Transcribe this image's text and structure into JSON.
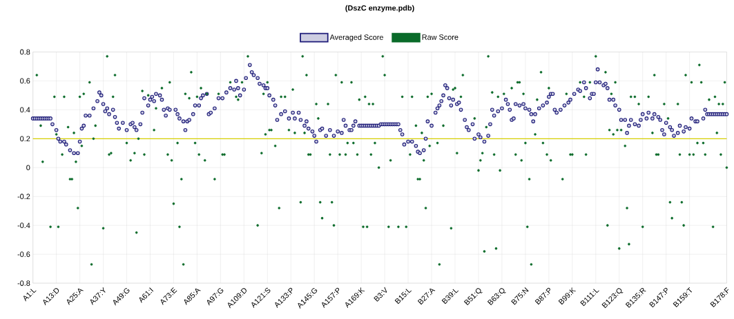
{
  "chart_data": {
    "type": "scatter",
    "title": "(DszC enzyme.pdb)",
    "categories": [
      "A1:L",
      null,
      null,
      null,
      null,
      null,
      null,
      null,
      null,
      null,
      null,
      null,
      "A13:D",
      null,
      null,
      null,
      null,
      null,
      null,
      null,
      null,
      null,
      null,
      null,
      "A25:A",
      null,
      null,
      null,
      null,
      null,
      null,
      null,
      null,
      null,
      null,
      null,
      "A37:Y",
      null,
      null,
      null,
      null,
      null,
      null,
      null,
      null,
      null,
      null,
      null,
      "A49:G",
      null,
      null,
      null,
      null,
      null,
      null,
      null,
      null,
      null,
      null,
      null,
      "A61:I",
      null,
      null,
      null,
      null,
      null,
      null,
      null,
      null,
      null,
      null,
      null,
      "A73:E",
      null,
      null,
      null,
      null,
      null,
      null,
      null,
      null,
      null,
      null,
      null,
      "A85:A",
      null,
      null,
      null,
      null,
      null,
      null,
      null,
      null,
      null,
      null,
      null,
      "A97:G",
      null,
      null,
      null,
      null,
      null,
      null,
      null,
      null,
      null,
      null,
      null,
      "A109:D",
      null,
      null,
      null,
      null,
      null,
      null,
      null,
      null,
      null,
      null,
      null,
      "A121:S",
      null,
      null,
      null,
      null,
      null,
      null,
      null,
      null,
      null,
      null,
      null,
      "A133:P",
      null,
      null,
      null,
      null,
      null,
      null,
      null,
      null,
      null,
      null,
      null,
      "A145:G",
      null,
      null,
      null,
      null,
      null,
      null,
      null,
      null,
      null,
      null,
      null,
      "A157:P",
      null,
      null,
      null,
      null,
      null,
      null,
      null,
      null,
      null,
      null,
      null,
      "A169:K",
      null,
      null,
      null,
      null,
      null,
      null,
      null,
      null,
      null,
      null,
      null,
      "B3:V",
      null,
      null,
      null,
      null,
      null,
      null,
      null,
      null,
      null,
      null,
      null,
      "B15:L",
      null,
      null,
      null,
      null,
      null,
      null,
      null,
      null,
      null,
      null,
      null,
      "B27:A",
      null,
      null,
      null,
      null,
      null,
      null,
      null,
      null,
      null,
      null,
      null,
      "B39:L",
      null,
      null,
      null,
      null,
      null,
      null,
      null,
      null,
      null,
      null,
      null,
      "B51:Q",
      null,
      null,
      null,
      null,
      null,
      null,
      null,
      null,
      null,
      null,
      null,
      "B63:Q",
      null,
      null,
      null,
      null,
      null,
      null,
      null,
      null,
      null,
      null,
      null,
      "B75:N",
      null,
      null,
      null,
      null,
      null,
      null,
      null,
      null,
      null,
      null,
      null,
      "B87:P",
      null,
      null,
      null,
      null,
      null,
      null,
      null,
      null,
      null,
      null,
      null,
      "B99:K",
      null,
      null,
      null,
      null,
      null,
      null,
      null,
      null,
      null,
      null,
      null,
      "B111:L",
      null,
      null,
      null,
      null,
      null,
      null,
      null,
      null,
      null,
      null,
      null,
      "B123:Q",
      null,
      null,
      null,
      null,
      null,
      null,
      null,
      null,
      null,
      null,
      null,
      "B135:R",
      null,
      null,
      null,
      null,
      null,
      null,
      null,
      null,
      null,
      null,
      null,
      "B147:P",
      null,
      null,
      null,
      null,
      null,
      null,
      null,
      null,
      null,
      null,
      null,
      "B159:T",
      null,
      null,
      null,
      null,
      null,
      null,
      null,
      null,
      null,
      null,
      null,
      null,
      null,
      null,
      null,
      null,
      null,
      null,
      "B178:F"
    ],
    "ylim": [
      -0.8,
      0.8
    ],
    "yticks": [
      -0.8,
      -0.6,
      -0.4,
      -0.2,
      0,
      0.2,
      0.4,
      0.6,
      0.8
    ],
    "grid": true,
    "legend": "top",
    "marker": "circle",
    "ref_lines": [
      {
        "axis": "y",
        "value": 0.2,
        "color": "#d6d000"
      }
    ],
    "series": [
      {
        "name": "Averaged Score",
        "color": "#1c1a78",
        "values": [
          0.34,
          0.34,
          0.34,
          0.34,
          0.34,
          0.34,
          0.34,
          0.34,
          0.34,
          0.34,
          0.3,
          null,
          0.26,
          0.2,
          0.18,
          null,
          0.18,
          0.16,
          null,
          0.12,
          null,
          0.1,
          null,
          0.1,
          0.18,
          0.27,
          0.29,
          0.36,
          null,
          0.36,
          null,
          0.41,
          null,
          0.46,
          0.52,
          0.5,
          0.44,
          0.39,
          0.41,
          0.37,
          null,
          0.4,
          0.35,
          0.31,
          0.27,
          null,
          0.31,
          null,
          0.26,
          null,
          0.3,
          0.31,
          0.28,
          0.26,
          null,
          0.3,
          0.38,
          0.48,
          null,
          0.43,
          0.47,
          0.49,
          0.46,
          0.51,
          null,
          0.5,
          0.47,
          0.4,
          0.36,
          0.41,
          0.4,
          null,
          null,
          0.4,
          0.37,
          0.34,
          null,
          0.32,
          0.26,
          0.32,
          0.33,
          null,
          0.37,
          0.43,
          null,
          0.43,
          0.48,
          0.5,
          null,
          0.51,
          0.37,
          0.38,
          null,
          0.41,
          null,
          0.48,
          null,
          0.48,
          null,
          0.52,
          null,
          0.55,
          null,
          0.54,
          0.6,
          0.55,
          0.5,
          null,
          0.54,
          0.62,
          null,
          0.71,
          0.66,
          0.64,
          null,
          0.62,
          0.58,
          null,
          0.57,
          0.55,
          0.55,
          0.5,
          null,
          0.47,
          0.43,
          0.33,
          null,
          0.37,
          null,
          0.39,
          null,
          0.34,
          null,
          0.38,
          0.34,
          null,
          0.38,
          0.33,
          null,
          0.29,
          0.32,
          0.27,
          null,
          0.25,
          0.22,
          0.18,
          null,
          0.26,
          0.27,
          null,
          0.22,
          null,
          0.26,
          null,
          0.22,
          null,
          0.25,
          null,
          0.24,
          0.33,
          0.29,
          null,
          0.26,
          0.26,
          0.29,
          0.32,
          null,
          0.29,
          0.29,
          0.29,
          0.29,
          0.29,
          0.29,
          0.29,
          0.29,
          0.29,
          0.29,
          0.29,
          0.3,
          0.3,
          0.3,
          0.3,
          0.3,
          0.3,
          0.3,
          0.3,
          0.3,
          0.3,
          0.26,
          0.23,
          0.16,
          null,
          0.18,
          null,
          0.18,
          null,
          0.15,
          0.11,
          0.1,
          null,
          0.12,
          0.2,
          0.32,
          null,
          0.29,
          null,
          0.38,
          0.41,
          0.43,
          0.46,
          0.5,
          0.57,
          0.55,
          0.48,
          0.43,
          0.47,
          null,
          0.44,
          0.45,
          0.4,
          null,
          0.33,
          0.28,
          0.26,
          null,
          0.3,
          0.2,
          null,
          0.23,
          0.21,
          null,
          0.18,
          null,
          0.22,
          0.3,
          0.4,
          0.36,
          null,
          0.39,
          null,
          0.41,
          null,
          0.47,
          0.44,
          0.4,
          0.33,
          0.34,
          0.44,
          null,
          0.43,
          null,
          0.44,
          0.41,
          null,
          0.4,
          0.37,
          0.32,
          0.37,
          null,
          0.41,
          null,
          0.43,
          null,
          0.45,
          0.49,
          0.51,
          0.51,
          0.4,
          0.38,
          null,
          0.4,
          null,
          0.43,
          null,
          0.45,
          0.47,
          null,
          0.51,
          null,
          0.54,
          0.53,
          null,
          0.59,
          0.55,
          null,
          0.48,
          0.51,
          0.51,
          0.59,
          0.68,
          0.59,
          null,
          0.57,
          0.58,
          0.55,
          0.47,
          null,
          0.47,
          0.43,
          null,
          0.4,
          0.33,
          null,
          0.33,
          0.24,
          0.29,
          0.33,
          null,
          0.3,
          null,
          0.29,
          0.33,
          0.37,
          null,
          0.34,
          0.38,
          null,
          0.34,
          0.37,
          null,
          0.35,
          0.33,
          0.26,
          0.23,
          0.31,
          null,
          0.28,
          0.26,
          0.22,
          null,
          0.24,
          0.29,
          null,
          0.25,
          0.28,
          null,
          0.27,
          0.34,
          null,
          0.32,
          0.32,
          null,
          null,
          0.34,
          0.4,
          0.37,
          0.37,
          0.37,
          0.37,
          0.37,
          0.37,
          0.37,
          0.37,
          0.37,
          0.37,
          0.37
        ]
      },
      {
        "name": "Raw Score",
        "color": "#0a6b2a",
        "values": [
          null,
          null,
          0.64,
          null,
          0.29,
          0.04,
          null,
          null,
          null,
          -0.41,
          null,
          0.49,
          0.23,
          -0.41,
          null,
          0.09,
          0.49,
          null,
          0.28,
          -0.08,
          -0.08,
          0.24,
          0.04,
          -0.28,
          0.49,
          0.15,
          0.51,
          null,
          null,
          0.59,
          -0.67,
          0.2,
          0.29,
          null,
          null,
          null,
          -0.42,
          null,
          0.77,
          0.09,
          0.1,
          0.49,
          0.64,
          null,
          null,
          null,
          null,
          null,
          0.17,
          null,
          0.05,
          null,
          0.1,
          -0.45,
          0.2,
          null,
          0.53,
          0.09,
          null,
          0.5,
          null,
          null,
          0.26,
          0.41,
          null,
          null,
          0.55,
          null,
          null,
          0.09,
          0.59,
          0.05,
          -0.25,
          null,
          0.17,
          -0.41,
          -0.08,
          -0.67,
          0.51,
          null,
          0.48,
          0.66,
          null,
          0.17,
          0.49,
          0.09,
          0.55,
          null,
          0.05,
          0.51,
          null,
          null,
          null,
          -0.08,
          null,
          0.51,
          null,
          0.09,
          0.09,
          null,
          null,
          0.59,
          null,
          null,
          0.49,
          0.47,
          null,
          0.59,
          null,
          null,
          0.77,
          null,
          null,
          null,
          null,
          -0.4,
          null,
          0.1,
          0.51,
          0.23,
          0.59,
          0.26,
          0.26,
          null,
          0.15,
          null,
          -0.28,
          0.49,
          null,
          0.49,
          null,
          0.26,
          null,
          0.54,
          0.24,
          null,
          null,
          -0.24,
          0.77,
          0.24,
          0.64,
          0.09,
          0.09,
          null,
          null,
          0.44,
          0.34,
          -0.24,
          -0.35,
          null,
          null,
          0.44,
          0.09,
          -0.24,
          -0.4,
          0.64,
          null,
          0.09,
          0.59,
          null,
          0.09,
          0.17,
          null,
          0.59,
          0.17,
          null,
          0.09,
          0.47,
          null,
          -0.41,
          0.49,
          -0.41,
          0.44,
          0.09,
          0.44,
          0.17,
          null,
          0.0,
          null,
          0.77,
          0.64,
          null,
          -0.41,
          0.05,
          null,
          null,
          null,
          -0.41,
          null,
          0.49,
          null,
          -0.41,
          null,
          0.09,
          0.49,
          null,
          0.29,
          -0.08,
          -0.08,
          0.24,
          0.05,
          -0.28,
          0.49,
          0.15,
          0.51,
          null,
          null,
          0.17,
          -0.67,
          null,
          0.29,
          null,
          null,
          null,
          -0.42,
          0.54,
          0.55,
          0.1,
          null,
          0.49,
          0.64,
          null,
          null,
          null,
          null,
          null,
          0.34,
          null,
          -0.02,
          0.05,
          0.1,
          -0.58,
          0.28,
          0.77,
          null,
          0.52,
          0.09,
          -0.56,
          0.49,
          -0.02,
          null,
          0.51,
          null,
          null,
          null,
          0.55,
          null,
          0.09,
          0.59,
          0.59,
          0.05,
          0.51,
          0.17,
          -0.41,
          -0.08,
          -0.67,
          null,
          0.23,
          0.47,
          null,
          0.66,
          0.17,
          null,
          0.09,
          0.55,
          0.05,
          null,
          null,
          null,
          null,
          null,
          -0.08,
          null,
          0.51,
          null,
          0.09,
          0.09,
          null,
          null,
          null,
          0.59,
          null,
          0.49,
          0.09,
          null,
          0.59,
          null,
          null,
          0.77,
          null,
          null,
          null,
          null,
          0.66,
          -0.4,
          0.26,
          0.51,
          0.23,
          0.59,
          0.26,
          -0.56,
          0.26,
          null,
          0.15,
          -0.28,
          -0.53,
          0.49,
          null,
          0.49,
          null,
          0.44,
          null,
          -0.41,
          null,
          null,
          0.49,
          null,
          0.24,
          0.64,
          0.09,
          0.09,
          null,
          null,
          0.44,
          null,
          0.34,
          -0.24,
          -0.35,
          null,
          null,
          0.44,
          0.09,
          -0.24,
          -0.4,
          0.64,
          null,
          0.09,
          0.59,
          0.09,
          null,
          0.17,
          0.71,
          0.59,
          0.17,
          0.09,
          null,
          0.47,
          null,
          -0.41,
          0.49,
          0.24,
          0.44,
          0.09,
          0.44,
          0.59,
          0.0
        ]
      }
    ]
  }
}
